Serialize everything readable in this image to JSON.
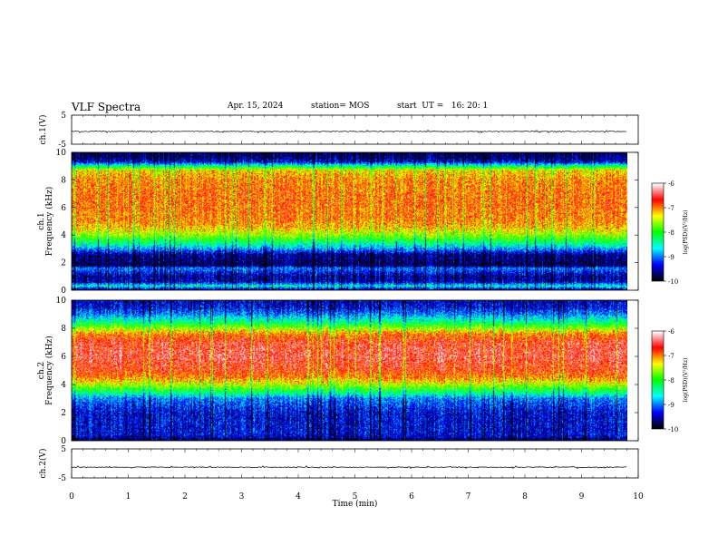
{
  "header": {
    "title": "VLF Spectra",
    "date": "Apr. 15, 2024",
    "station": "station= MOS",
    "start": "start  UT =   16: 20: 1"
  },
  "chart_data": [
    {
      "type": "line",
      "panel": "ch1-waveform",
      "ylabel": "ch.1(V)",
      "yticks": [
        "5",
        "-5"
      ],
      "ylim": [
        -5,
        5
      ],
      "xlim": [
        0,
        10
      ],
      "series": [
        {
          "x": [
            0,
            9.8
          ],
          "y": [
            -0.6,
            -0.6
          ]
        }
      ]
    },
    {
      "type": "heatmap",
      "panel": "ch1-spectrogram",
      "ylabel": "ch.1\nFrequency (kHz)",
      "ylim": [
        0,
        10
      ],
      "yticks": [
        "0",
        "2",
        "4",
        "6",
        "8",
        "10"
      ],
      "xlim": [
        0,
        10
      ],
      "data_xmax": 9.8,
      "profile_khz_vs_logpsd": [
        [
          0,
          -9.8
        ],
        [
          0.3,
          -8.5
        ],
        [
          0.6,
          -9.5
        ],
        [
          1.0,
          -9.6
        ],
        [
          1.6,
          -9.0
        ],
        [
          1.8,
          -9.8
        ],
        [
          2.6,
          -9.6
        ],
        [
          3.0,
          -8.9
        ],
        [
          3.5,
          -8.2
        ],
        [
          4.0,
          -7.6
        ],
        [
          4.5,
          -7.2
        ],
        [
          5.0,
          -7.0
        ],
        [
          6.0,
          -6.9
        ],
        [
          7.0,
          -6.9
        ],
        [
          8.0,
          -7.0
        ],
        [
          8.7,
          -7.3
        ],
        [
          9.0,
          -8.3
        ],
        [
          9.3,
          -9.4
        ],
        [
          9.6,
          -9.7
        ],
        [
          10,
          -9.8
        ]
      ],
      "colorbar": {
        "label": "log(PSD)(V²/Hz)",
        "ticks": [
          "-6",
          "-7",
          "-8",
          "-9",
          "-10"
        ],
        "range": [
          -10,
          -6
        ]
      }
    },
    {
      "type": "heatmap",
      "panel": "ch2-spectrogram",
      "ylabel": "ch.2\nFrequency (kHz)",
      "ylim": [
        0,
        10
      ],
      "yticks": [
        "0",
        "2",
        "4",
        "6",
        "8",
        "10"
      ],
      "xlim": [
        0,
        10
      ],
      "data_xmax": 9.8,
      "profile_khz_vs_logpsd": [
        [
          0,
          -9.8
        ],
        [
          0.4,
          -9.4
        ],
        [
          1.0,
          -9.4
        ],
        [
          2.0,
          -9.4
        ],
        [
          3.0,
          -9.0
        ],
        [
          3.5,
          -8.2
        ],
        [
          4.0,
          -7.5
        ],
        [
          4.5,
          -7.0
        ],
        [
          5.0,
          -6.7
        ],
        [
          6.0,
          -6.5
        ],
        [
          7.0,
          -6.6
        ],
        [
          7.6,
          -7.0
        ],
        [
          8.0,
          -7.6
        ],
        [
          8.5,
          -8.4
        ],
        [
          9.0,
          -9.0
        ],
        [
          9.5,
          -9.4
        ],
        [
          10,
          -9.5
        ]
      ],
      "colorbar": {
        "label": "log(PSD)(V²/Hz)",
        "ticks": [
          "-6",
          "-7",
          "-8",
          "-9",
          "-10"
        ],
        "range": [
          -10,
          -6
        ]
      }
    },
    {
      "type": "line",
      "panel": "ch2-waveform",
      "ylabel": "ch.2(V)",
      "yticks": [
        "5",
        "-5"
      ],
      "ylim": [
        -5,
        5
      ],
      "xlim": [
        0,
        10
      ],
      "series": [
        {
          "x": [
            0,
            9.8
          ],
          "y": [
            -1.3,
            -1.3
          ]
        }
      ]
    }
  ],
  "xaxis": {
    "label": "Time  (min)",
    "ticks": [
      "0",
      "1",
      "2",
      "3",
      "4",
      "5",
      "6",
      "7",
      "8",
      "9",
      "10"
    ]
  },
  "colors": {
    "colormap": [
      "#000000",
      "#0000ff",
      "#00ffff",
      "#00ff00",
      "#ffff00",
      "#ff0000",
      "#ffffff"
    ]
  }
}
